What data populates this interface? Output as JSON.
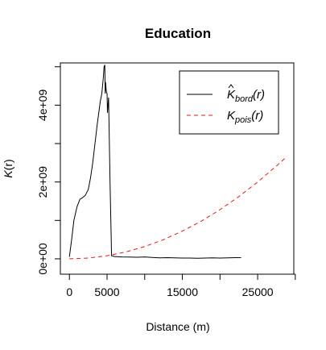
{
  "chart_data": {
    "type": "line",
    "title": "Education",
    "xlabel": "Distance (m)",
    "ylabel_main": "K",
    "ylabel_arg": "(r)",
    "xlim": [
      -1200,
      29800
    ],
    "ylim": [
      -400000000,
      5100000000
    ],
    "x_ticks": [
      0,
      5000,
      10000,
      15000,
      20000,
      25000,
      30000
    ],
    "x_tick_labels": [
      "0",
      "5000",
      "",
      "15000",
      "",
      "25000",
      ""
    ],
    "y_ticks": [
      0,
      1000000000,
      2000000000,
      3000000000,
      4000000000,
      5000000000
    ],
    "y_tick_labels": [
      "0e+00",
      "",
      "2e+09",
      "",
      "4e+09",
      ""
    ],
    "series": [
      {
        "name_main": "K",
        "name_sub": "bord",
        "name_arg": "(r)",
        "hat": true,
        "color": "#000000",
        "style": "solid",
        "x": [
          0,
          300,
          600,
          1000,
          1400,
          1800,
          2100,
          2500,
          2800,
          3100,
          3400,
          3700,
          3900,
          4100,
          4300,
          4500,
          4600,
          4700,
          4750,
          4800,
          4900,
          5000,
          5050,
          5200,
          5400,
          5600,
          6000,
          7000,
          8000,
          9000,
          10000,
          11000,
          12000,
          13000,
          14000,
          15000,
          16000,
          17000,
          18000,
          19000,
          20000,
          21000,
          22000,
          22800
        ],
        "y": [
          50000000,
          500000000,
          1000000000,
          1350000000,
          1550000000,
          1600000000,
          1650000000,
          1800000000,
          2100000000,
          2500000000,
          3000000000,
          3500000000,
          3800000000,
          4100000000,
          4300000000,
          4700000000,
          5000000000,
          5050000000,
          4300000000,
          4600000000,
          4350000000,
          4300000000,
          3800000000,
          4200000000,
          2000000000,
          80000000,
          60000000,
          50000000,
          45000000,
          40000000,
          50000000,
          35000000,
          25000000,
          30000000,
          25000000,
          20000000,
          20000000,
          15000000,
          20000000,
          25000000,
          20000000,
          25000000,
          30000000,
          30000000
        ]
      },
      {
        "name_main": "K",
        "name_sub": "pois",
        "name_arg": "(r)",
        "hat": false,
        "color": "#e31a1c",
        "style": "dashed",
        "x": [
          0,
          2500,
          5000,
          7500,
          10000,
          12500,
          15000,
          17500,
          20000,
          22500,
          25000,
          27500,
          28700
        ],
        "y": [
          0,
          20000000,
          80000000,
          180000000,
          320000000,
          500000000,
          720000000,
          980000000,
          1280000000,
          1620000000,
          2000000000,
          2420000000,
          2630000000
        ]
      }
    ],
    "legend_position": "top-right",
    "grid": false
  }
}
